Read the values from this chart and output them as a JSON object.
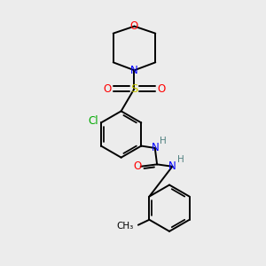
{
  "bg_color": "#ececec",
  "atom_colors": {
    "C": "#000000",
    "N": "#0000ff",
    "O": "#ff0000",
    "S": "#cccc00",
    "Cl": "#00aa00",
    "H": "#508080"
  },
  "bond_color": "#000000",
  "bond_width": 1.4,
  "figsize": [
    3.0,
    3.0
  ],
  "dpi": 100
}
